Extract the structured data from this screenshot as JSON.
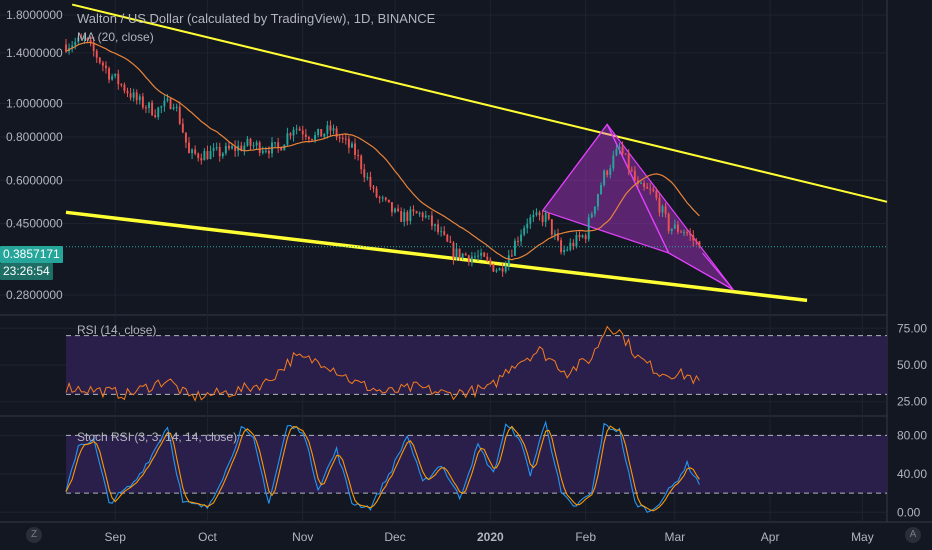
{
  "header": {
    "title": "Walton / US Dollar (calculated by TradingView), 1D, BINANCE",
    "ma_label": "MA (20, close)"
  },
  "price_tags": {
    "last_price": "0.3857171",
    "countdown": "23:26:54"
  },
  "rsi_pane": {
    "label": "RSI (14, close)"
  },
  "stoch_pane": {
    "label": "Stoch RSI (3, 3, 14, 14, close)"
  },
  "footer": {
    "left_icon": "Z",
    "right_icon": "A"
  },
  "colors": {
    "background": "#131722",
    "up": "#26a69a",
    "down": "#ef5350",
    "ma": "#e8833a",
    "trendline": "#ffff33",
    "pattern": "#e040fb",
    "rsi_line": "#f57c1f",
    "stoch_k": "#2196f3",
    "stoch_d": "#ff9800",
    "band": "#2a1f4a"
  },
  "chart_data": [
    {
      "type": "candlestick",
      "scale": "log",
      "title": "Walton / US Dollar (calculated by TradingView), 1D, BINANCE",
      "x_tick_labels": [
        "Sep",
        "Oct",
        "Nov",
        "Dec",
        "2020",
        "Feb",
        "Mar",
        "Apr",
        "May"
      ],
      "y_tick_labels": [
        "1.8000000",
        "1.4000000",
        "1.0000000",
        "0.8000000",
        "0.6000000",
        "0.4500000",
        "0.2800000"
      ],
      "y_ticks": [
        1.8,
        1.4,
        1.0,
        0.8,
        0.6,
        0.45,
        0.28
      ],
      "ylim": [
        0.25,
        1.95
      ],
      "x_range": [
        "2019-08-16",
        "2020-05-09"
      ],
      "close_anchors": [
        {
          "d": "2019-08-16",
          "v": 1.48
        },
        {
          "d": "2019-08-22",
          "v": 1.52
        },
        {
          "d": "2019-08-30",
          "v": 1.22
        },
        {
          "d": "2019-09-08",
          "v": 1.02
        },
        {
          "d": "2019-09-14",
          "v": 0.95
        },
        {
          "d": "2019-09-20",
          "v": 1.02
        },
        {
          "d": "2019-09-25",
          "v": 0.71
        },
        {
          "d": "2019-10-05",
          "v": 0.72
        },
        {
          "d": "2019-10-14",
          "v": 0.76
        },
        {
          "d": "2019-10-24",
          "v": 0.74
        },
        {
          "d": "2019-10-29",
          "v": 0.86
        },
        {
          "d": "2019-11-05",
          "v": 0.8
        },
        {
          "d": "2019-11-10",
          "v": 0.84
        },
        {
          "d": "2019-11-18",
          "v": 0.72
        },
        {
          "d": "2019-11-24",
          "v": 0.55
        },
        {
          "d": "2019-12-02",
          "v": 0.47
        },
        {
          "d": "2019-12-10",
          "v": 0.48
        },
        {
          "d": "2019-12-20",
          "v": 0.37
        },
        {
          "d": "2019-12-28",
          "v": 0.36
        },
        {
          "d": "2020-01-04",
          "v": 0.33
        },
        {
          "d": "2020-01-08",
          "v": 0.38
        },
        {
          "d": "2020-01-13",
          "v": 0.46
        },
        {
          "d": "2020-01-19",
          "v": 0.47
        },
        {
          "d": "2020-01-24",
          "v": 0.37
        },
        {
          "d": "2020-02-01",
          "v": 0.42
        },
        {
          "d": "2020-02-07",
          "v": 0.62
        },
        {
          "d": "2020-02-12",
          "v": 0.74
        },
        {
          "d": "2020-02-18",
          "v": 0.57
        },
        {
          "d": "2020-02-23",
          "v": 0.55
        },
        {
          "d": "2020-02-28",
          "v": 0.44
        },
        {
          "d": "2020-03-04",
          "v": 0.43
        },
        {
          "d": "2020-03-09",
          "v": 0.386
        }
      ],
      "ma_period": 20,
      "last_price": 0.3857171,
      "trendlines": [
        {
          "from": {
            "d": "2019-08-18",
            "v": 1.93
          },
          "to": {
            "d": "2020-05-09",
            "v": 0.52
          }
        },
        {
          "from": {
            "d": "2019-08-16",
            "v": 0.485
          },
          "to": {
            "d": "2020-04-13",
            "v": 0.27
          }
        }
      ],
      "patterns": [
        {
          "type": "shark",
          "points": [
            {
              "d": "2020-01-18",
              "v": 0.49
            },
            {
              "d": "2020-02-08",
              "v": 0.87
            },
            {
              "d": "2020-02-28",
              "v": 0.37
            },
            {
              "d": "2020-03-20",
              "v": 0.29
            },
            {
              "d": "2020-03-10",
              "v": 0.37
            }
          ]
        }
      ]
    },
    {
      "type": "line",
      "title": "RSI (14, close)",
      "ylim": [
        18,
        82
      ],
      "y_ticks": [
        75,
        50,
        25
      ],
      "y_tick_labels": [
        "75.00",
        "50.00",
        "25.00"
      ],
      "band": [
        30,
        70
      ],
      "anchors": [
        {
          "d": "2019-08-16",
          "v": 35
        },
        {
          "d": "2019-08-25",
          "v": 33
        },
        {
          "d": "2019-09-05",
          "v": 30
        },
        {
          "d": "2019-09-18",
          "v": 40
        },
        {
          "d": "2019-09-25",
          "v": 28
        },
        {
          "d": "2019-10-10",
          "v": 32
        },
        {
          "d": "2019-10-20",
          "v": 38
        },
        {
          "d": "2019-10-29",
          "v": 55
        },
        {
          "d": "2019-11-08",
          "v": 52
        },
        {
          "d": "2019-11-18",
          "v": 38
        },
        {
          "d": "2019-11-28",
          "v": 31
        },
        {
          "d": "2019-12-08",
          "v": 35
        },
        {
          "d": "2019-12-18",
          "v": 30
        },
        {
          "d": "2020-01-01",
          "v": 34
        },
        {
          "d": "2020-01-08",
          "v": 50
        },
        {
          "d": "2020-01-17",
          "v": 60
        },
        {
          "d": "2020-01-26",
          "v": 45
        },
        {
          "d": "2020-02-03",
          "v": 55
        },
        {
          "d": "2020-02-08",
          "v": 77
        },
        {
          "d": "2020-02-12",
          "v": 73
        },
        {
          "d": "2020-02-18",
          "v": 55
        },
        {
          "d": "2020-02-25",
          "v": 45
        },
        {
          "d": "2020-03-01",
          "v": 44
        },
        {
          "d": "2020-03-05",
          "v": 43
        },
        {
          "d": "2020-03-09",
          "v": 38
        }
      ]
    },
    {
      "type": "line",
      "title": "Stoch RSI (3, 3, 14, 14, close)",
      "ylim": [
        -8,
        96
      ],
      "y_ticks": [
        80,
        40,
        0
      ],
      "y_tick_labels": [
        "80.00",
        "40.00",
        "0.00"
      ],
      "band": [
        20,
        80
      ],
      "k_anchors": [
        {
          "d": "2019-08-16",
          "v": 20
        },
        {
          "d": "2019-08-20",
          "v": 70
        },
        {
          "d": "2019-08-25",
          "v": 75
        },
        {
          "d": "2019-08-30",
          "v": 10
        },
        {
          "d": "2019-09-07",
          "v": 30
        },
        {
          "d": "2019-09-13",
          "v": 60
        },
        {
          "d": "2019-09-18",
          "v": 90
        },
        {
          "d": "2019-09-23",
          "v": 10
        },
        {
          "d": "2019-10-01",
          "v": 5
        },
        {
          "d": "2019-10-08",
          "v": 50
        },
        {
          "d": "2019-10-12",
          "v": 88
        },
        {
          "d": "2019-10-16",
          "v": 75
        },
        {
          "d": "2019-10-21",
          "v": 10
        },
        {
          "d": "2019-10-27",
          "v": 90
        },
        {
          "d": "2019-11-01",
          "v": 85
        },
        {
          "d": "2019-11-06",
          "v": 25
        },
        {
          "d": "2019-11-12",
          "v": 65
        },
        {
          "d": "2019-11-17",
          "v": 10
        },
        {
          "d": "2019-11-23",
          "v": 5
        },
        {
          "d": "2019-11-30",
          "v": 45
        },
        {
          "d": "2019-12-05",
          "v": 80
        },
        {
          "d": "2019-12-10",
          "v": 30
        },
        {
          "d": "2019-12-16",
          "v": 50
        },
        {
          "d": "2019-12-22",
          "v": 15
        },
        {
          "d": "2019-12-28",
          "v": 70
        },
        {
          "d": "2020-01-02",
          "v": 40
        },
        {
          "d": "2020-01-06",
          "v": 90
        },
        {
          "d": "2020-01-10",
          "v": 80
        },
        {
          "d": "2020-01-14",
          "v": 40
        },
        {
          "d": "2020-01-19",
          "v": 95
        },
        {
          "d": "2020-01-24",
          "v": 20
        },
        {
          "d": "2020-01-28",
          "v": 5
        },
        {
          "d": "2020-02-03",
          "v": 20
        },
        {
          "d": "2020-02-07",
          "v": 90
        },
        {
          "d": "2020-02-12",
          "v": 85
        },
        {
          "d": "2020-02-17",
          "v": 10
        },
        {
          "d": "2020-02-22",
          "v": 0
        },
        {
          "d": "2020-03-01",
          "v": 30
        },
        {
          "d": "2020-03-05",
          "v": 50
        },
        {
          "d": "2020-03-09",
          "v": 30
        }
      ]
    }
  ]
}
